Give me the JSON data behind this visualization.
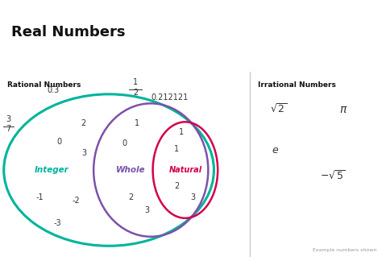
{
  "title": "Real Numbers",
  "bg_color": "#f0f0f0",
  "white_bg": "#ffffff",
  "panel_bg": "#ebebeb",
  "title_color": "#111111",
  "title_fontsize": 13,
  "left_section_label": "Rational Numbers",
  "right_section_label": "Irrational Numbers",
  "integer_label": "Integer",
  "integer_color": "#00b49c",
  "whole_label": "Whole",
  "whole_color": "#7b52aa",
  "natural_label": "Natural",
  "natural_color": "#d4004c",
  "example_text": "Example numbers shown",
  "number_color": "#333333",
  "number_fontsize": 7
}
